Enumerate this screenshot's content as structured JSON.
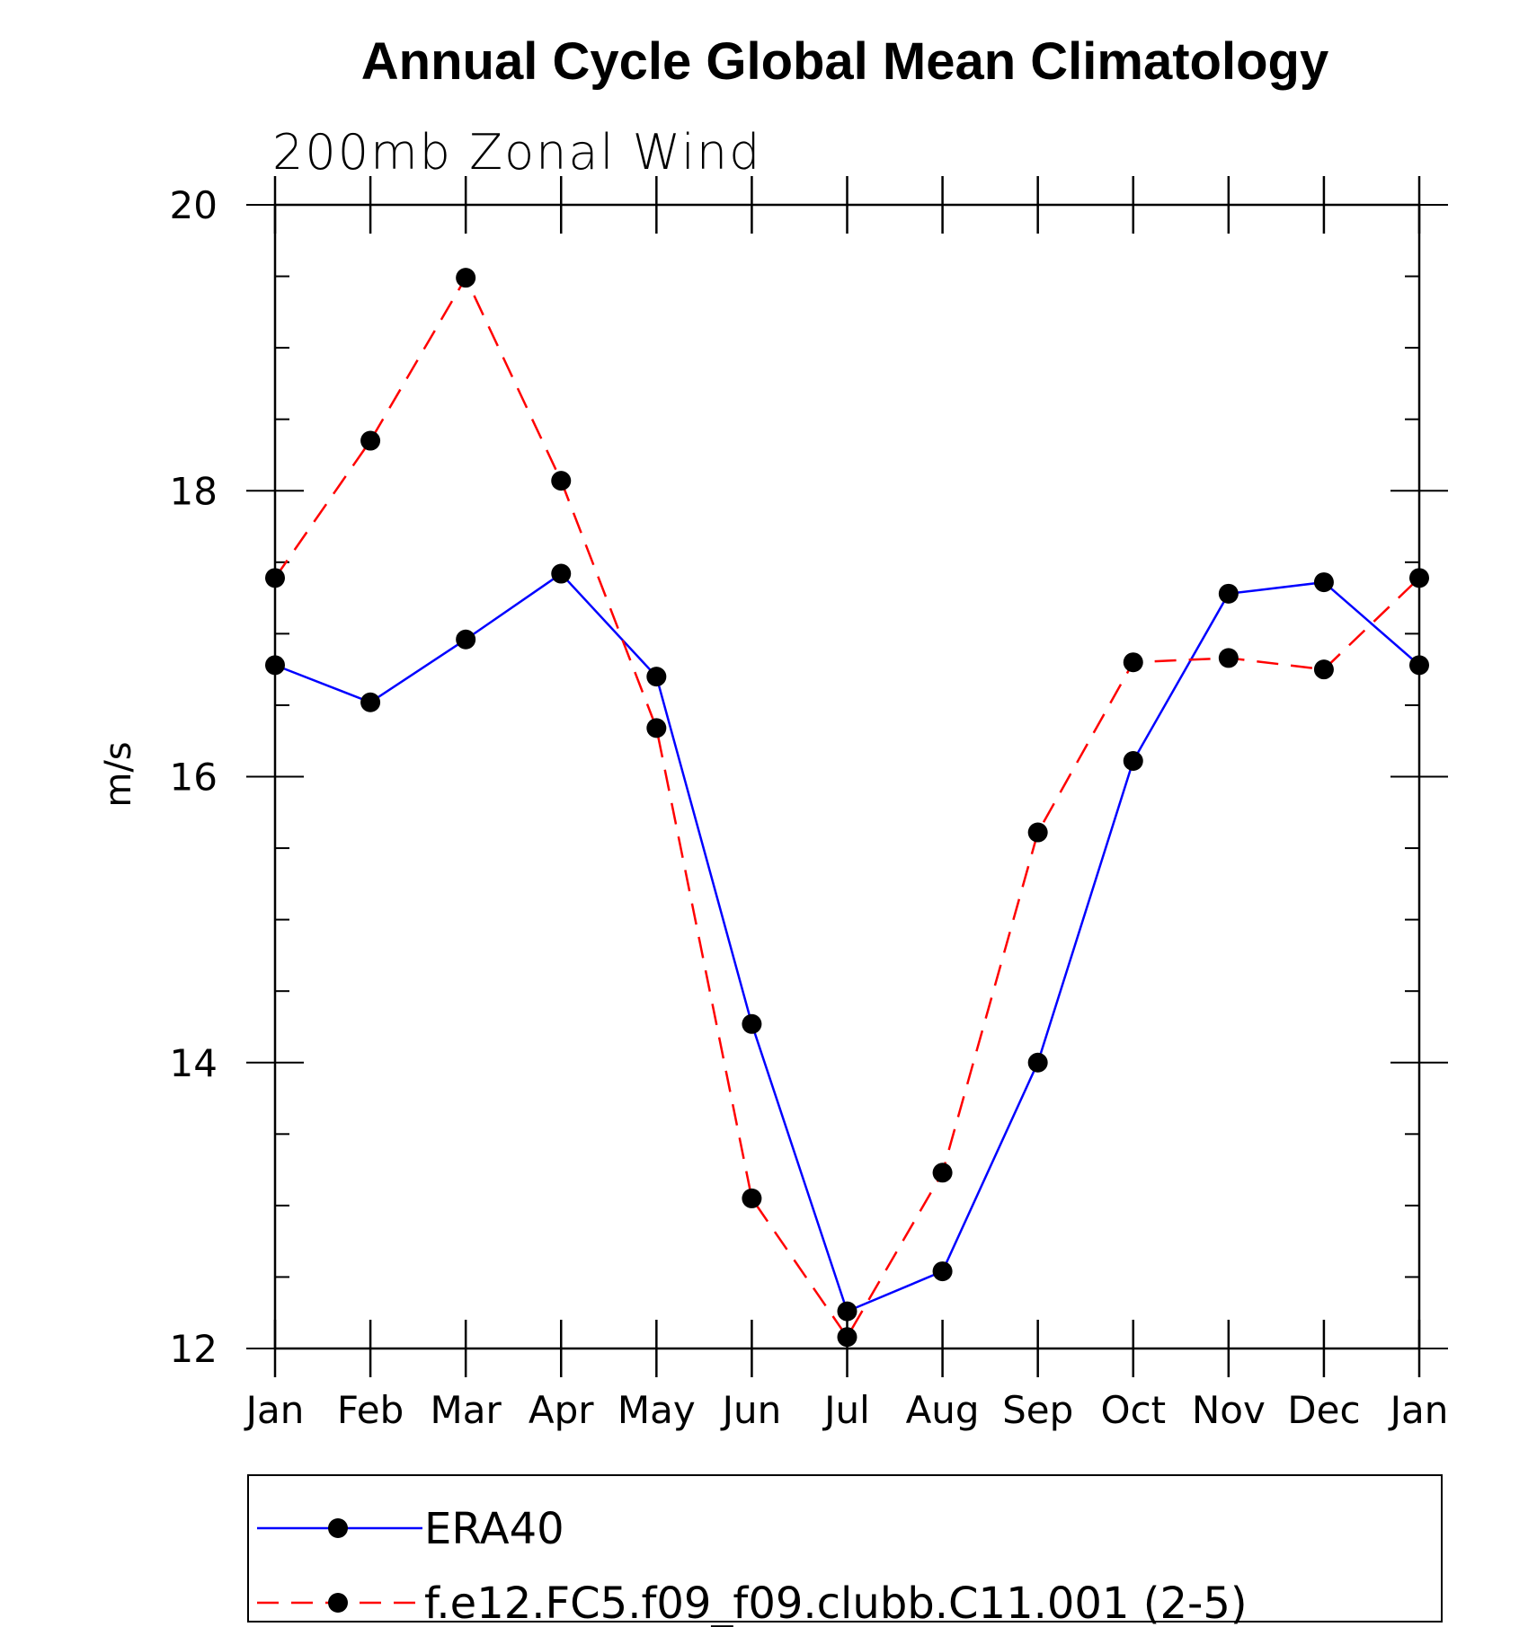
{
  "chart_data": {
    "type": "line",
    "title": "Annual Cycle Global Mean Climatology",
    "subtitle": "200mb Zonal Wind",
    "xlabel": "",
    "ylabel": "m/s",
    "categories": [
      "Jan",
      "Feb",
      "Mar",
      "Apr",
      "May",
      "Jun",
      "Jul",
      "Aug",
      "Sep",
      "Oct",
      "Nov",
      "Dec",
      "Jan"
    ],
    "ylim": [
      12,
      20
    ],
    "yticks": [
      "12",
      "14",
      "16",
      "18",
      "20"
    ],
    "grid": false,
    "legend_position": "bottom",
    "series": [
      {
        "name": "ERA40",
        "color": "#0000ff",
        "line_style": "solid",
        "marker": "filled-circle",
        "values": [
          16.78,
          16.52,
          16.96,
          17.42,
          16.7,
          14.27,
          12.26,
          12.54,
          14.0,
          16.11,
          17.28,
          17.36,
          16.78
        ]
      },
      {
        "name": "f.e12.FC5.f09_f09.clubb.C11.001 (2-5)",
        "color": "#ff0000",
        "line_style": "dashed",
        "marker": "filled-circle",
        "values": [
          17.39,
          18.35,
          19.49,
          18.07,
          16.34,
          13.05,
          12.08,
          13.23,
          15.61,
          16.8,
          16.83,
          16.75,
          17.39
        ]
      }
    ]
  }
}
